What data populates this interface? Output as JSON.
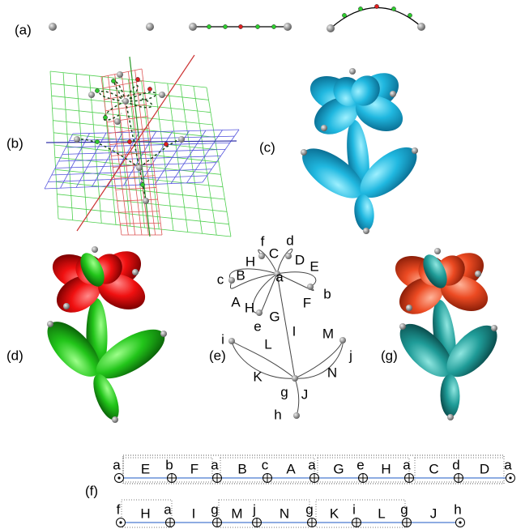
{
  "panel_labels": [
    "(a)",
    "(b)",
    "(c)",
    "(d)",
    "(e)",
    "(f)",
    "(g)"
  ],
  "graph": {
    "nodes": [
      "a",
      "b",
      "c",
      "d",
      "e",
      "f",
      "g",
      "h",
      "i",
      "j"
    ],
    "edges": [
      "A",
      "B",
      "C",
      "D",
      "E",
      "F",
      "G",
      "H",
      "H",
      "I",
      "J",
      "K",
      "L",
      "M",
      "N"
    ]
  },
  "sequence": {
    "rows": [
      {
        "nodes": [
          "a",
          "b",
          "a",
          "c",
          "a",
          "e",
          "a",
          "d",
          "a"
        ],
        "edges": [
          "E",
          "F",
          "B",
          "A",
          "G",
          "H",
          "C",
          "D"
        ]
      },
      {
        "nodes": [
          "f",
          "a",
          "g",
          "j",
          "g",
          "i",
          "g",
          "h"
        ],
        "edges": [
          "H",
          "I",
          "M",
          "N",
          "K",
          "L",
          "J"
        ]
      }
    ]
  }
}
